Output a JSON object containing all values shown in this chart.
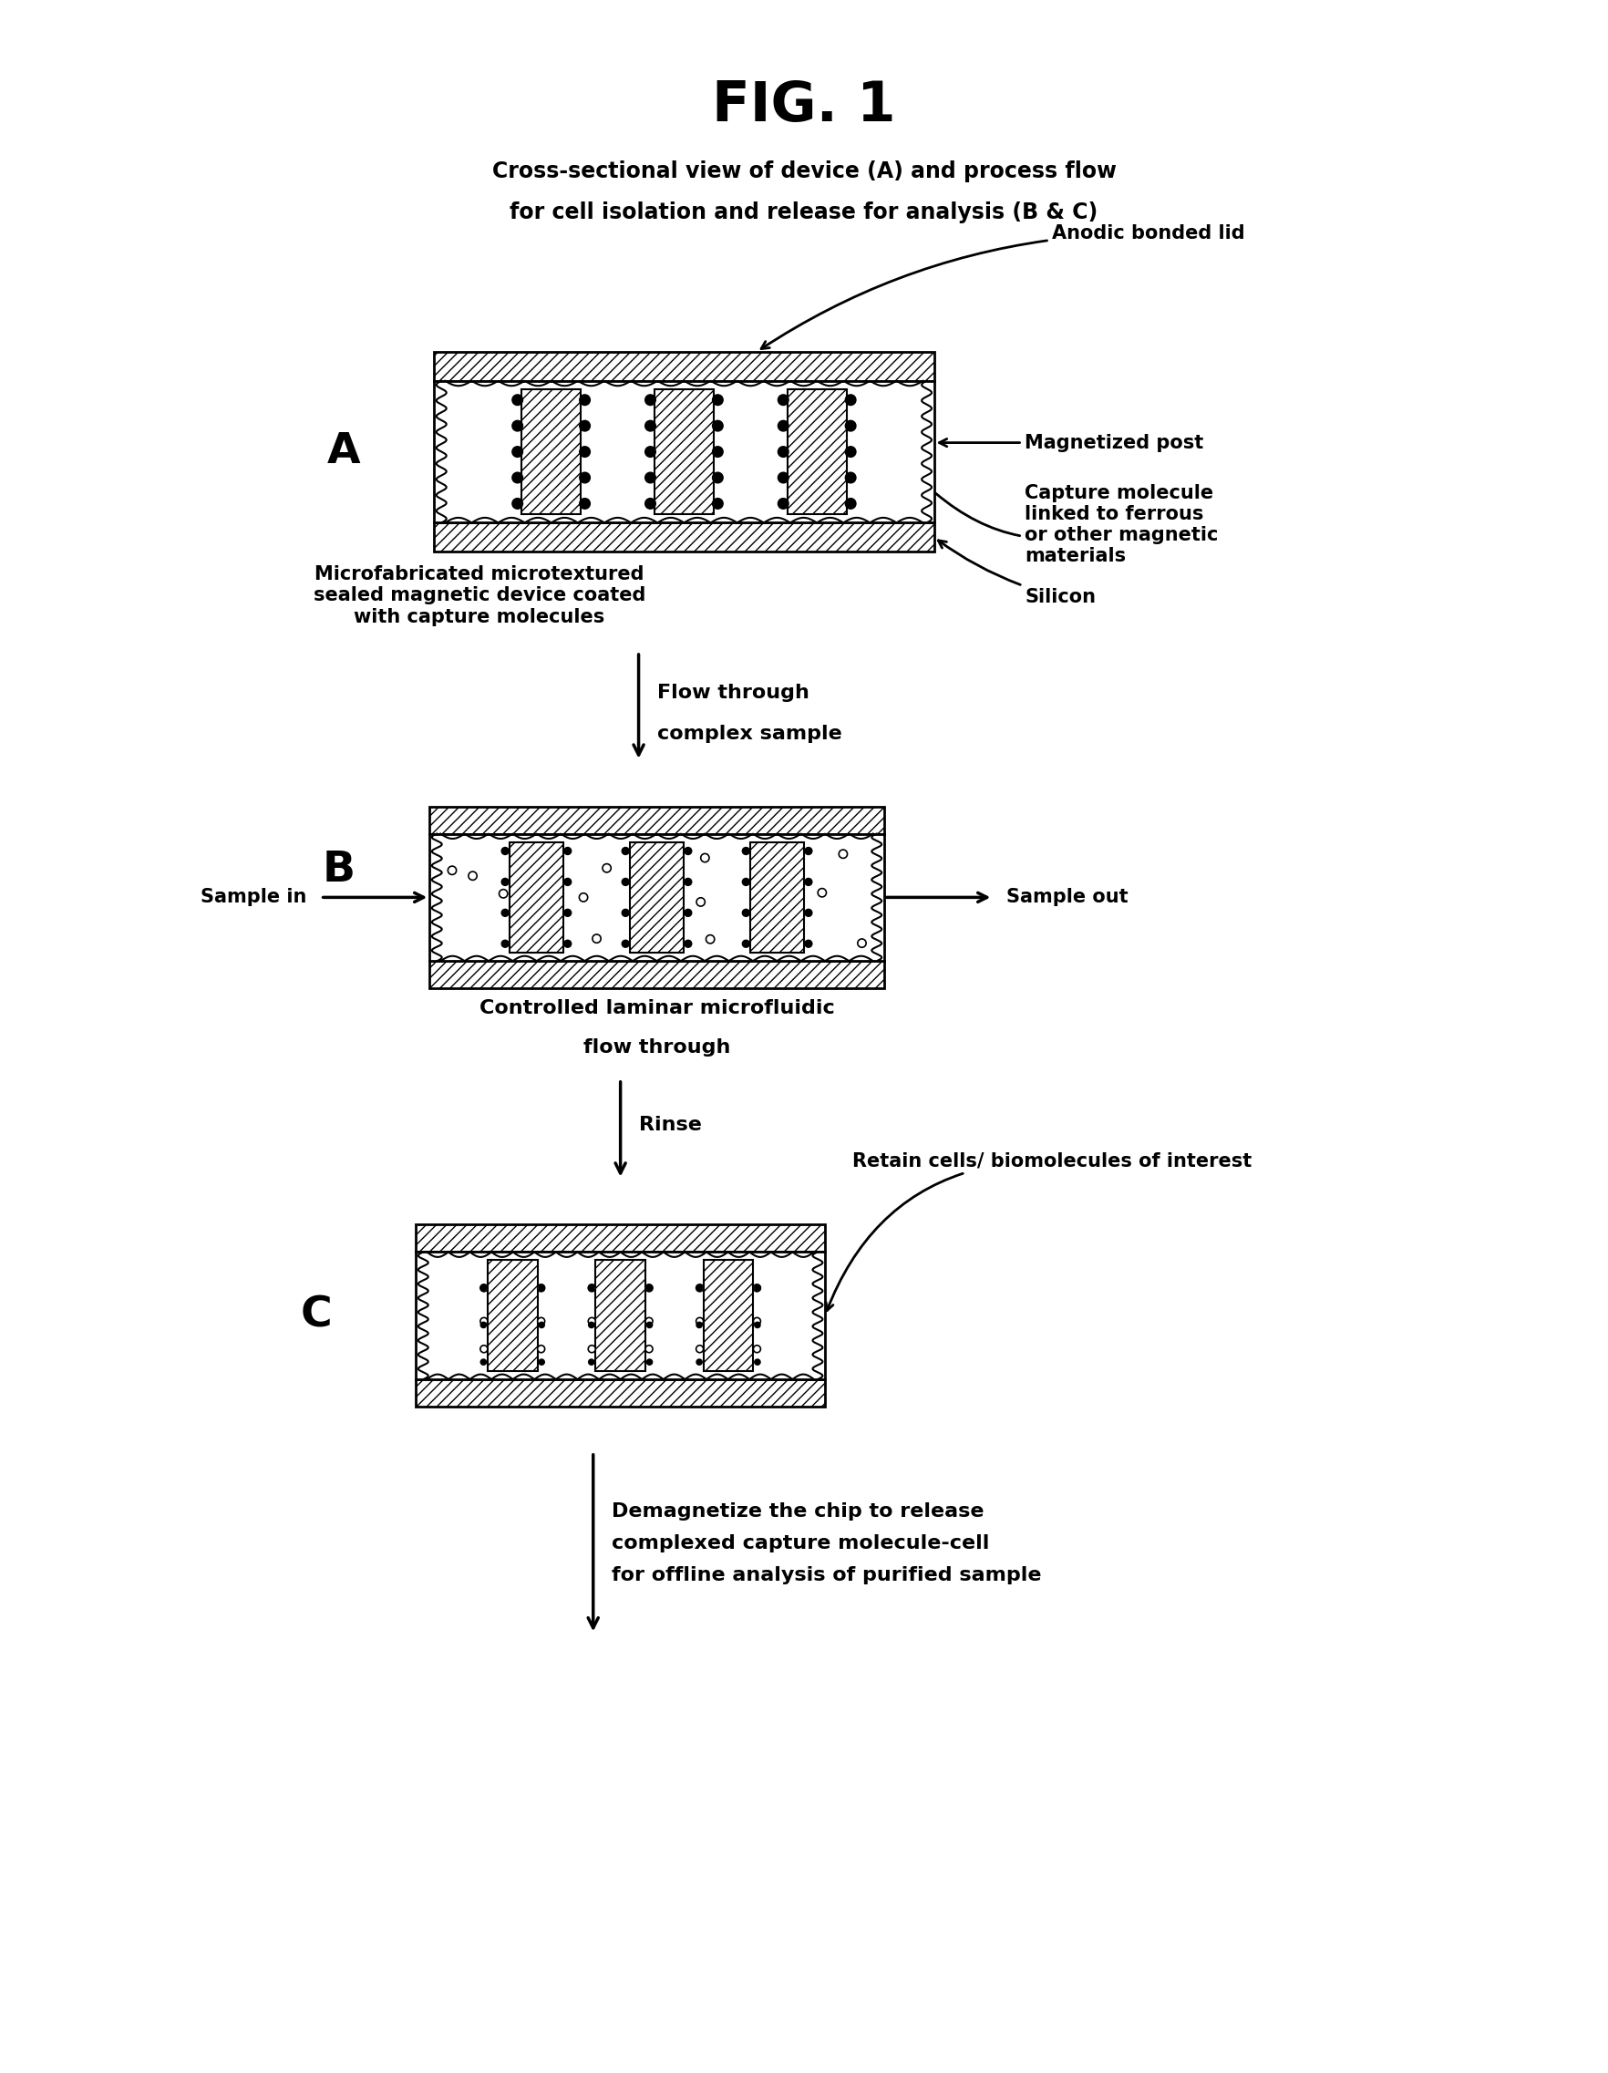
{
  "title": "FIG. 1",
  "subtitle_line1": "Cross-sectional view of device (A) and process flow",
  "subtitle_line2": "for cell isolation and release for analysis (B & C)",
  "background_color": "#ffffff",
  "label_A": "A",
  "label_B": "B",
  "label_C": "C",
  "annotation_anodic": "Anodic bonded lid",
  "annotation_mag_post": "Magnetized post",
  "annotation_capture": "Capture molecule\nlinked to ferrous\nor other magnetic\nmaterials",
  "annotation_silicon": "Silicon",
  "annotation_microfab": "Microfabricated microtextured\nsealed magnetic device coated\nwith capture molecules",
  "annotation_flow_line1": "Flow through",
  "annotation_flow_line2": "complex sample",
  "annotation_sample_in": "Sample in",
  "annotation_sample_out": "Sample out",
  "annotation_laminar_line1": "Controlled laminar microfluidic",
  "annotation_laminar_line2": "flow through",
  "annotation_rinse": "Rinse",
  "annotation_retain": "Retain cells/ biomolecules of interest",
  "annotation_demag_line1": "Demagnetize the chip to release",
  "annotation_demag_line2": "complexed capture molecule-cell",
  "annotation_demag_line3": "for offline analysis of purified sample"
}
